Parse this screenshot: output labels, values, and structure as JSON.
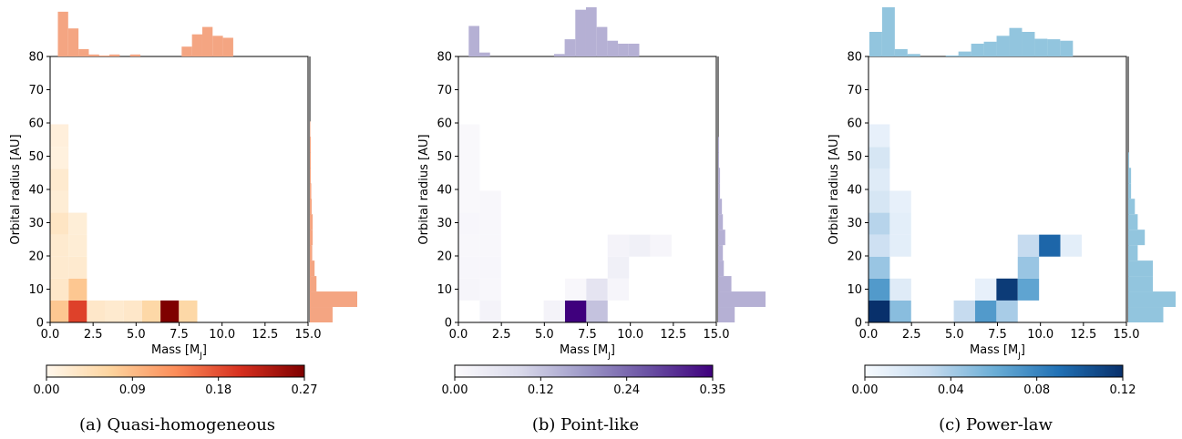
{
  "chart_data": [
    {
      "type": "heatmap",
      "caption": "(a) Quasi-homogeneous",
      "xlabel": "Mass [M",
      "xlabel_sub": "J",
      "xlabel_end": "]",
      "ylabel": "Orbital radius [AU]",
      "xlim": [
        0,
        15
      ],
      "ylim": [
        0,
        80
      ],
      "xticks": [
        "0.0",
        "2.5",
        "5.0",
        "7.5",
        "10.0",
        "12.5",
        "15.0"
      ],
      "yticks": [
        "0",
        "10",
        "20",
        "30",
        "40",
        "50",
        "60",
        "70",
        "80"
      ],
      "colormap": {
        "name": "OrRd",
        "stops": [
          "#fff7ec",
          "#fdd49e",
          "#fc8d59",
          "#d7301f",
          "#7f0000"
        ]
      },
      "colorbar": {
        "min": 0,
        "max": 0.27,
        "ticks": [
          "0.00",
          "0.09",
          "0.18",
          "0.27"
        ]
      },
      "marginal_color": "#f4a582",
      "cells": [
        {
          "x0": 0,
          "x1": 1.07,
          "y0": 0,
          "y1": 6.6,
          "v": 0.08
        },
        {
          "x0": 1.07,
          "x1": 2.14,
          "y0": 0,
          "y1": 6.6,
          "v": 0.19
        },
        {
          "x0": 2.14,
          "x1": 3.21,
          "y0": 0,
          "y1": 6.6,
          "v": 0.03
        },
        {
          "x0": 3.21,
          "x1": 4.28,
          "y0": 0,
          "y1": 6.6,
          "v": 0.025
        },
        {
          "x0": 4.28,
          "x1": 5.35,
          "y0": 0,
          "y1": 6.6,
          "v": 0.03
        },
        {
          "x0": 5.35,
          "x1": 6.42,
          "y0": 0,
          "y1": 6.6,
          "v": 0.06
        },
        {
          "x0": 6.42,
          "x1": 7.49,
          "y0": 0,
          "y1": 6.6,
          "v": 0.27
        },
        {
          "x0": 7.49,
          "x1": 8.56,
          "y0": 0,
          "y1": 6.6,
          "v": 0.06
        },
        {
          "x0": 1.07,
          "x1": 2.14,
          "y0": 6.6,
          "y1": 13.2,
          "v": 0.08
        },
        {
          "x0": 0,
          "x1": 1.07,
          "y0": 6.6,
          "y1": 13.2,
          "v": 0.03
        },
        {
          "x0": 0,
          "x1": 1.07,
          "y0": 13.2,
          "y1": 19.8,
          "v": 0.025
        },
        {
          "x0": 1.07,
          "x1": 2.14,
          "y0": 13.2,
          "y1": 19.8,
          "v": 0.025
        },
        {
          "x0": 0,
          "x1": 1.07,
          "y0": 19.8,
          "y1": 26.4,
          "v": 0.025
        },
        {
          "x0": 1.07,
          "x1": 2.14,
          "y0": 19.8,
          "y1": 26.4,
          "v": 0.02
        },
        {
          "x0": 0,
          "x1": 1.07,
          "y0": 26.4,
          "y1": 33.0,
          "v": 0.035
        },
        {
          "x0": 1.07,
          "x1": 2.14,
          "y0": 26.4,
          "y1": 33.0,
          "v": 0.018
        },
        {
          "x0": 0,
          "x1": 1.07,
          "y0": 33.0,
          "y1": 39.6,
          "v": 0.02
        },
        {
          "x0": 0,
          "x1": 1.07,
          "y0": 39.6,
          "y1": 46.2,
          "v": 0.025
        },
        {
          "x0": 0,
          "x1": 1.07,
          "y0": 46.2,
          "y1": 52.8,
          "v": 0.012
        },
        {
          "x0": 0,
          "x1": 1.07,
          "y0": 52.8,
          "y1": 59.6,
          "v": 0.015
        }
      ],
      "top_hist": {
        "x0": 0.45,
        "width": 0.6,
        "values": [
          0.91,
          0.57,
          0.15,
          0.04,
          0.02,
          0.04,
          0.0,
          0.04,
          0.0,
          0.0,
          0.0,
          0.0,
          0.2,
          0.45,
          0.6,
          0.42,
          0.38
        ]
      },
      "right_hist": {
        "y0": 0,
        "height": 4.65,
        "values": [
          0.48,
          1.0,
          0.14,
          0.1,
          0.05,
          0.06,
          0.06,
          0.04,
          0.03,
          0.02,
          0.02,
          0.02,
          0.01
        ]
      }
    },
    {
      "type": "heatmap",
      "caption": "(b) Point-like",
      "xlabel": "Mass [M",
      "xlabel_sub": "J",
      "xlabel_end": "]",
      "ylabel": "Orbital radius [AU]",
      "xlim": [
        0,
        15
      ],
      "ylim": [
        0,
        80
      ],
      "xticks": [
        "0.0",
        "2.5",
        "5.0",
        "7.5",
        "10.0",
        "12.5",
        "15.0"
      ],
      "yticks": [
        "0",
        "10",
        "20",
        "30",
        "40",
        "50",
        "60",
        "70",
        "80"
      ],
      "colormap": {
        "name": "Purples",
        "stops": [
          "#fcfbfd",
          "#dadaeb",
          "#9e9ac8",
          "#6a51a3",
          "#3f007d"
        ]
      },
      "colorbar": {
        "min": 0,
        "max": 0.35,
        "ticks": [
          "0.00",
          "0.12",
          "0.24",
          "0.35"
        ]
      },
      "marginal_color": "#b5b0d4",
      "cells": [
        {
          "x0": 1.24,
          "x1": 2.48,
          "y0": 0,
          "y1": 6.6,
          "v": 0.02
        },
        {
          "x0": 4.96,
          "x1": 6.2,
          "y0": 0,
          "y1": 6.6,
          "v": 0.02
        },
        {
          "x0": 6.2,
          "x1": 7.44,
          "y0": 0,
          "y1": 6.6,
          "v": 0.35
        },
        {
          "x0": 7.44,
          "x1": 8.68,
          "y0": 0,
          "y1": 6.6,
          "v": 0.12
        },
        {
          "x0": 0,
          "x1": 1.24,
          "y0": 6.6,
          "y1": 13.2,
          "v": 0.015
        },
        {
          "x0": 1.24,
          "x1": 2.48,
          "y0": 6.6,
          "y1": 13.2,
          "v": 0.01
        },
        {
          "x0": 6.2,
          "x1": 7.44,
          "y0": 6.6,
          "y1": 13.2,
          "v": 0.01
        },
        {
          "x0": 7.44,
          "x1": 8.68,
          "y0": 6.6,
          "y1": 13.2,
          "v": 0.06
        },
        {
          "x0": 8.68,
          "x1": 9.92,
          "y0": 6.6,
          "y1": 13.2,
          "v": 0.015
        },
        {
          "x0": 0,
          "x1": 1.24,
          "y0": 13.2,
          "y1": 19.8,
          "v": 0.012
        },
        {
          "x0": 1.24,
          "x1": 2.48,
          "y0": 13.2,
          "y1": 19.8,
          "v": 0.012
        },
        {
          "x0": 8.68,
          "x1": 9.92,
          "y0": 13.2,
          "y1": 19.8,
          "v": 0.03
        },
        {
          "x0": 0,
          "x1": 1.24,
          "y0": 19.8,
          "y1": 26.4,
          "v": 0.01
        },
        {
          "x0": 1.24,
          "x1": 2.48,
          "y0": 19.8,
          "y1": 26.4,
          "v": 0.01
        },
        {
          "x0": 8.68,
          "x1": 9.92,
          "y0": 19.8,
          "y1": 26.4,
          "v": 0.02
        },
        {
          "x0": 9.92,
          "x1": 11.16,
          "y0": 19.8,
          "y1": 26.4,
          "v": 0.03
        },
        {
          "x0": 11.16,
          "x1": 12.4,
          "y0": 19.8,
          "y1": 26.4,
          "v": 0.015
        },
        {
          "x0": 0,
          "x1": 1.24,
          "y0": 26.4,
          "y1": 33.0,
          "v": 0.012
        },
        {
          "x0": 1.24,
          "x1": 2.48,
          "y0": 26.4,
          "y1": 33.0,
          "v": 0.01
        },
        {
          "x0": 0,
          "x1": 1.24,
          "y0": 33.0,
          "y1": 39.6,
          "v": 0.008
        },
        {
          "x0": 1.24,
          "x1": 2.48,
          "y0": 33.0,
          "y1": 39.6,
          "v": 0.01
        },
        {
          "x0": 0,
          "x1": 1.24,
          "y0": 39.6,
          "y1": 59.6,
          "v": 0.008
        }
      ],
      "top_hist": {
        "x0": 0.6,
        "width": 0.62,
        "values": [
          0.62,
          0.08,
          0.0,
          0.0,
          0.0,
          0.0,
          0.0,
          0.0,
          0.05,
          0.35,
          0.95,
          1.0,
          0.6,
          0.32,
          0.26,
          0.26,
          0.0
        ]
      },
      "right_hist": {
        "y0": 0,
        "height": 4.65,
        "values": [
          0.35,
          1.0,
          0.28,
          0.12,
          0.1,
          0.15,
          0.1,
          0.08,
          0.04,
          0.04,
          0.02,
          0.02
        ]
      }
    },
    {
      "type": "heatmap",
      "caption": "(c) Power-law",
      "xlabel": "Mass [M",
      "xlabel_sub": "J",
      "xlabel_end": "]",
      "ylabel": "Orbital radius [AU]",
      "xlim": [
        0,
        15
      ],
      "ylim": [
        0,
        80
      ],
      "xticks": [
        "0.0",
        "2.5",
        "5.0",
        "7.5",
        "10.0",
        "12.5",
        "15.0"
      ],
      "yticks": [
        "0",
        "10",
        "20",
        "30",
        "40",
        "50",
        "60",
        "70",
        "80"
      ],
      "colormap": {
        "name": "Blues",
        "stops": [
          "#f7fbff",
          "#c6dbef",
          "#6baed6",
          "#2171b5",
          "#08306b"
        ]
      },
      "colorbar": {
        "min": 0,
        "max": 0.12,
        "ticks": [
          "0.00",
          "0.04",
          "0.08",
          "0.12"
        ]
      },
      "marginal_color": "#92c5de",
      "cells": [
        {
          "x0": 0,
          "x1": 1.24,
          "y0": 0,
          "y1": 6.6,
          "v": 0.12
        },
        {
          "x0": 1.24,
          "x1": 2.48,
          "y0": 0,
          "y1": 6.6,
          "v": 0.05
        },
        {
          "x0": 4.96,
          "x1": 6.2,
          "y0": 0,
          "y1": 6.6,
          "v": 0.03
        },
        {
          "x0": 6.2,
          "x1": 7.44,
          "y0": 0,
          "y1": 6.6,
          "v": 0.07
        },
        {
          "x0": 7.44,
          "x1": 8.68,
          "y0": 0,
          "y1": 6.6,
          "v": 0.04
        },
        {
          "x0": 0,
          "x1": 1.24,
          "y0": 6.6,
          "y1": 13.2,
          "v": 0.07
        },
        {
          "x0": 1.24,
          "x1": 2.48,
          "y0": 6.6,
          "y1": 13.2,
          "v": 0.015
        },
        {
          "x0": 6.2,
          "x1": 7.44,
          "y0": 6.6,
          "y1": 13.2,
          "v": 0.01
        },
        {
          "x0": 7.44,
          "x1": 8.68,
          "y0": 6.6,
          "y1": 13.2,
          "v": 0.115
        },
        {
          "x0": 8.68,
          "x1": 9.92,
          "y0": 6.6,
          "y1": 13.2,
          "v": 0.065
        },
        {
          "x0": 0,
          "x1": 1.24,
          "y0": 13.2,
          "y1": 19.8,
          "v": 0.045
        },
        {
          "x0": 8.68,
          "x1": 9.92,
          "y0": 13.2,
          "y1": 19.8,
          "v": 0.045
        },
        {
          "x0": 0,
          "x1": 1.24,
          "y0": 19.8,
          "y1": 26.4,
          "v": 0.025
        },
        {
          "x0": 1.24,
          "x1": 2.48,
          "y0": 19.8,
          "y1": 26.4,
          "v": 0.012
        },
        {
          "x0": 8.68,
          "x1": 9.92,
          "y0": 19.8,
          "y1": 26.4,
          "v": 0.03
        },
        {
          "x0": 9.92,
          "x1": 11.16,
          "y0": 19.8,
          "y1": 26.4,
          "v": 0.095
        },
        {
          "x0": 11.16,
          "x1": 12.4,
          "y0": 19.8,
          "y1": 26.4,
          "v": 0.012
        },
        {
          "x0": 0,
          "x1": 1.24,
          "y0": 26.4,
          "y1": 33.0,
          "v": 0.035
        },
        {
          "x0": 1.24,
          "x1": 2.48,
          "y0": 26.4,
          "y1": 33.0,
          "v": 0.012
        },
        {
          "x0": 0,
          "x1": 1.24,
          "y0": 33.0,
          "y1": 39.6,
          "v": 0.02
        },
        {
          "x0": 1.24,
          "x1": 2.48,
          "y0": 33.0,
          "y1": 39.6,
          "v": 0.01
        },
        {
          "x0": 0,
          "x1": 1.24,
          "y0": 39.6,
          "y1": 46.2,
          "v": 0.015
        },
        {
          "x0": 0,
          "x1": 1.24,
          "y0": 46.2,
          "y1": 52.8,
          "v": 0.02
        },
        {
          "x0": 0,
          "x1": 1.24,
          "y0": 52.8,
          "y1": 59.6,
          "v": 0.01
        }
      ],
      "top_hist": {
        "x0": 0.05,
        "width": 0.74,
        "values": [
          0.5,
          1.0,
          0.15,
          0.05,
          0.0,
          0.0,
          0.02,
          0.1,
          0.26,
          0.3,
          0.42,
          0.58,
          0.5,
          0.36,
          0.35,
          0.32,
          0.0
        ]
      },
      "right_hist": {
        "y0": 0,
        "height": 4.65,
        "values": [
          0.74,
          1.0,
          0.52,
          0.52,
          0.2,
          0.35,
          0.2,
          0.14,
          0.06,
          0.06,
          0.02,
          0.0
        ]
      }
    }
  ]
}
